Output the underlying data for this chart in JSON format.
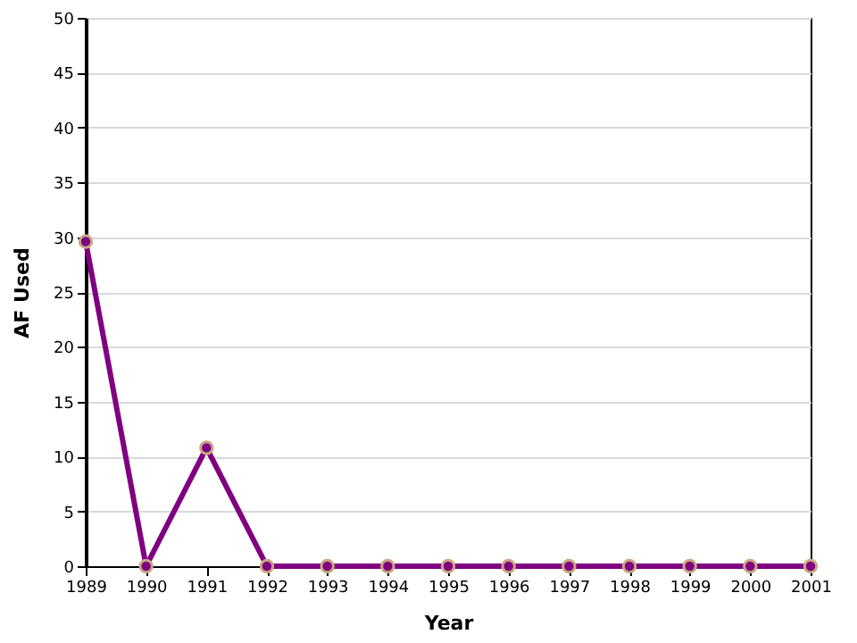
{
  "chart_data": {
    "type": "line",
    "xlabel": "Year",
    "ylabel": "AF Used",
    "x": [
      1989,
      1990,
      1991,
      1992,
      1993,
      1994,
      1995,
      1996,
      1997,
      1998,
      1999,
      2000,
      2001
    ],
    "series": [
      {
        "color": "#800080",
        "values": [
          29.6,
          0,
          10.8,
          0,
          0,
          0,
          0,
          0,
          0,
          0,
          0,
          0,
          0
        ]
      }
    ],
    "xlim": [
      1989,
      2001
    ],
    "xticks": [
      1989,
      1990,
      1991,
      1992,
      1993,
      1994,
      1995,
      1996,
      1997,
      1998,
      1999,
      2000,
      2001
    ],
    "ylim": [
      0,
      50
    ],
    "yticks": [
      0,
      5,
      10,
      15,
      20,
      25,
      30,
      35,
      40,
      45,
      50
    ],
    "grid": "y",
    "marker": "circle",
    "line_style": "solid"
  }
}
